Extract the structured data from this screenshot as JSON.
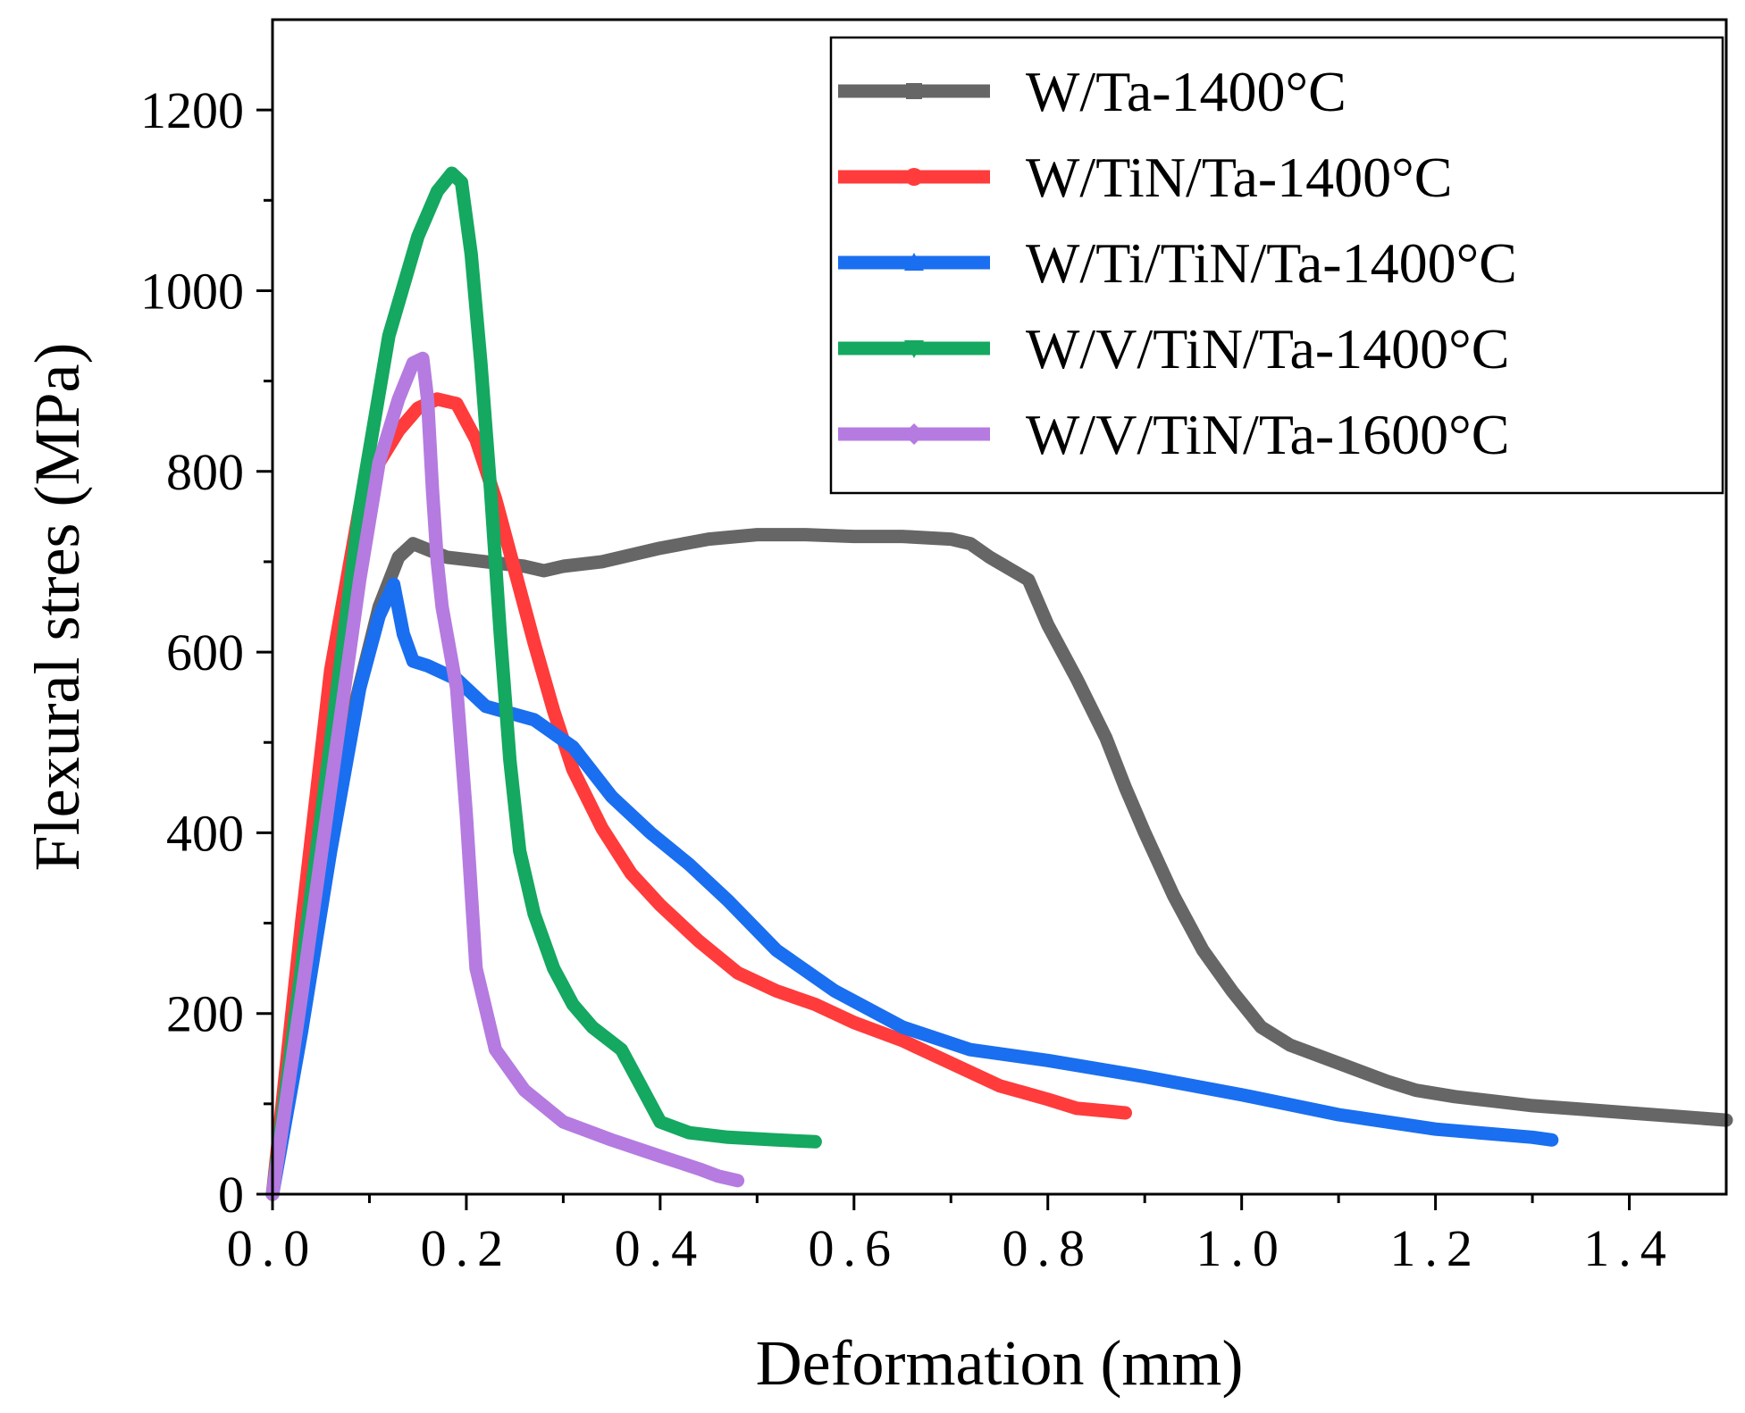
{
  "chart_data": {
    "type": "line",
    "title": "",
    "xlabel": "Deformation (mm)",
    "ylabel": "Flexural stres (MPa)",
    "xlim": [
      0.0,
      1.5
    ],
    "ylim": [
      0,
      1300
    ],
    "xticks": [
      0.0,
      0.2,
      0.4,
      0.6,
      0.8,
      1.0,
      1.2,
      1.4
    ],
    "xtick_labels": [
      "0.0",
      "0.2",
      "0.4",
      "0.6",
      "0.8",
      "1.0",
      "1.2",
      "1.4"
    ],
    "yticks": [
      0,
      200,
      400,
      600,
      800,
      1000,
      1200
    ],
    "ytick_labels": [
      "0",
      "200",
      "400",
      "600",
      "800",
      "1000",
      "1200"
    ],
    "grid": false,
    "legend_position": "top-right",
    "series": [
      {
        "name": "W/Ta-1400°C",
        "color": "#666666",
        "marker": "square",
        "x": [
          0.0,
          0.04,
          0.08,
          0.11,
          0.13,
          0.145,
          0.18,
          0.22,
          0.26,
          0.28,
          0.3,
          0.34,
          0.4,
          0.45,
          0.5,
          0.55,
          0.6,
          0.65,
          0.7,
          0.72,
          0.74,
          0.78,
          0.8,
          0.83,
          0.86,
          0.88,
          0.9,
          0.93,
          0.96,
          0.99,
          1.02,
          1.05,
          1.1,
          1.15,
          1.18,
          1.22,
          1.26,
          1.3,
          1.35,
          1.4,
          1.45,
          1.5
        ],
        "y": [
          0,
          280,
          520,
          650,
          705,
          720,
          705,
          700,
          695,
          690,
          695,
          700,
          715,
          725,
          730,
          730,
          728,
          728,
          725,
          720,
          705,
          680,
          630,
          570,
          505,
          450,
          400,
          330,
          270,
          225,
          185,
          165,
          145,
          125,
          115,
          108,
          103,
          98,
          94,
          90,
          86,
          82
        ]
      },
      {
        "name": "W/TiN/Ta-1400°C",
        "color": "#ff3b3b",
        "marker": "circle",
        "x": [
          0.0,
          0.03,
          0.06,
          0.09,
          0.11,
          0.13,
          0.15,
          0.17,
          0.19,
          0.21,
          0.23,
          0.25,
          0.27,
          0.29,
          0.31,
          0.34,
          0.37,
          0.4,
          0.44,
          0.48,
          0.52,
          0.56,
          0.6,
          0.65,
          0.7,
          0.75,
          0.8,
          0.83,
          0.86,
          0.88
        ],
        "y": [
          0,
          300,
          580,
          760,
          810,
          845,
          870,
          880,
          875,
          835,
          770,
          690,
          610,
          535,
          470,
          405,
          355,
          320,
          280,
          245,
          225,
          210,
          190,
          170,
          145,
          120,
          105,
          95,
          92,
          90
        ]
      },
      {
        "name": "W/Ti/TiN/Ta-1400°C",
        "color": "#1a6ef0",
        "marker": "triangle-up",
        "x": [
          0.0,
          0.03,
          0.06,
          0.09,
          0.11,
          0.125,
          0.135,
          0.145,
          0.16,
          0.19,
          0.22,
          0.27,
          0.31,
          0.35,
          0.39,
          0.43,
          0.47,
          0.52,
          0.58,
          0.65,
          0.72,
          0.8,
          0.9,
          1.0,
          1.1,
          1.2,
          1.3,
          1.32
        ],
        "y": [
          0,
          180,
          380,
          560,
          640,
          675,
          620,
          590,
          585,
          570,
          540,
          525,
          495,
          440,
          400,
          365,
          325,
          270,
          225,
          185,
          160,
          148,
          130,
          110,
          88,
          72,
          63,
          60
        ]
      },
      {
        "name": "W/V/TiN/Ta-1400°C",
        "color": "#14a860",
        "marker": "triangle-down",
        "x": [
          0.0,
          0.03,
          0.06,
          0.09,
          0.12,
          0.15,
          0.17,
          0.185,
          0.195,
          0.205,
          0.215,
          0.225,
          0.235,
          0.245,
          0.255,
          0.27,
          0.29,
          0.31,
          0.33,
          0.36,
          0.38,
          0.4,
          0.43,
          0.47,
          0.52,
          0.56
        ],
        "y": [
          0,
          250,
          500,
          760,
          950,
          1060,
          1110,
          1130,
          1120,
          1040,
          920,
          780,
          620,
          480,
          380,
          310,
          250,
          210,
          185,
          160,
          120,
          80,
          68,
          63,
          60,
          58
        ]
      },
      {
        "name": "W/V/TiN/Ta-1600°C",
        "color": "#b57be0",
        "marker": "diamond",
        "x": [
          0.0,
          0.03,
          0.06,
          0.09,
          0.11,
          0.13,
          0.145,
          0.155,
          0.16,
          0.165,
          0.17,
          0.175,
          0.18,
          0.19,
          0.2,
          0.21,
          0.23,
          0.26,
          0.3,
          0.35,
          0.4,
          0.44,
          0.46,
          0.48
        ],
        "y": [
          0,
          220,
          450,
          680,
          810,
          880,
          920,
          925,
          880,
          780,
          700,
          650,
          620,
          560,
          420,
          250,
          160,
          115,
          80,
          60,
          42,
          28,
          20,
          15
        ]
      }
    ]
  }
}
